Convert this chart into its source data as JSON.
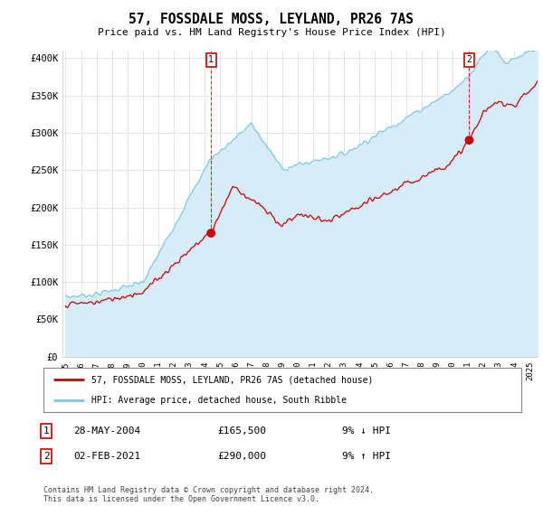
{
  "title": "57, FOSSDALE MOSS, LEYLAND, PR26 7AS",
  "subtitle": "Price paid vs. HM Land Registry's House Price Index (HPI)",
  "ylim": [
    0,
    410000
  ],
  "yticks": [
    0,
    50000,
    100000,
    150000,
    200000,
    250000,
    300000,
    350000,
    400000
  ],
  "ytick_labels": [
    "£0",
    "£50K",
    "£100K",
    "£150K",
    "£200K",
    "£250K",
    "£300K",
    "£350K",
    "£400K"
  ],
  "hpi_color": "#7ec8e3",
  "hpi_fill_color": "#d6edf8",
  "price_color": "#cc0000",
  "annotation_box_color": "#cc0000",
  "sale1_price": 165500,
  "sale1_x_year": 2004.4,
  "sale2_price": 290000,
  "sale2_x_year": 2021.08,
  "legend_label_red": "57, FOSSDALE MOSS, LEYLAND, PR26 7AS (detached house)",
  "legend_label_blue": "HPI: Average price, detached house, South Ribble",
  "table_row1": [
    "1",
    "28-MAY-2004",
    "£165,500",
    "9% ↓ HPI"
  ],
  "table_row2": [
    "2",
    "02-FEB-2021",
    "£290,000",
    "9% ↑ HPI"
  ],
  "footer": "Contains HM Land Registry data © Crown copyright and database right 2024.\nThis data is licensed under the Open Government Licence v3.0.",
  "background_color": "#ffffff",
  "grid_color": "#cccccc",
  "xlim_left": 1994.8,
  "xlim_right": 2025.5
}
